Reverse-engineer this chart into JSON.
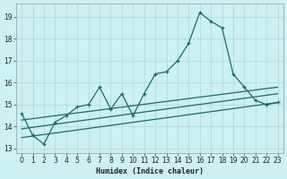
{
  "xlabel": "Humidex (Indice chaleur)",
  "bg_color": "#cdf0f0",
  "grid_color": "#aad8d8",
  "line_color": "#1a6b6b",
  "xlim": [
    -0.5,
    23.5
  ],
  "ylim": [
    12.8,
    19.6
  ],
  "xticks": [
    0,
    1,
    2,
    3,
    4,
    5,
    6,
    7,
    8,
    9,
    10,
    11,
    12,
    13,
    14,
    15,
    16,
    17,
    18,
    19,
    20,
    21,
    22,
    23
  ],
  "yticks": [
    13,
    14,
    15,
    16,
    17,
    18,
    19
  ],
  "main_x": [
    0,
    1,
    2,
    3,
    4,
    5,
    6,
    7,
    8,
    9,
    10,
    11,
    12,
    13,
    14,
    15,
    16,
    17,
    18,
    19,
    20,
    21,
    22,
    23
  ],
  "main_y": [
    14.6,
    13.6,
    13.2,
    14.2,
    14.5,
    14.9,
    15.0,
    15.8,
    14.8,
    15.5,
    14.5,
    15.5,
    16.4,
    16.5,
    17.0,
    17.8,
    19.2,
    18.8,
    18.5,
    16.4,
    15.8,
    15.2,
    15.0,
    15.1
  ],
  "line1_x": [
    0,
    23
  ],
  "line1_y": [
    14.3,
    15.8
  ],
  "line2_x": [
    0,
    23
  ],
  "line2_y": [
    13.9,
    15.5
  ],
  "line3_x": [
    0,
    23
  ],
  "line3_y": [
    13.5,
    15.1
  ],
  "xlabel_fontsize": 6,
  "tick_fontsize": 5.5
}
